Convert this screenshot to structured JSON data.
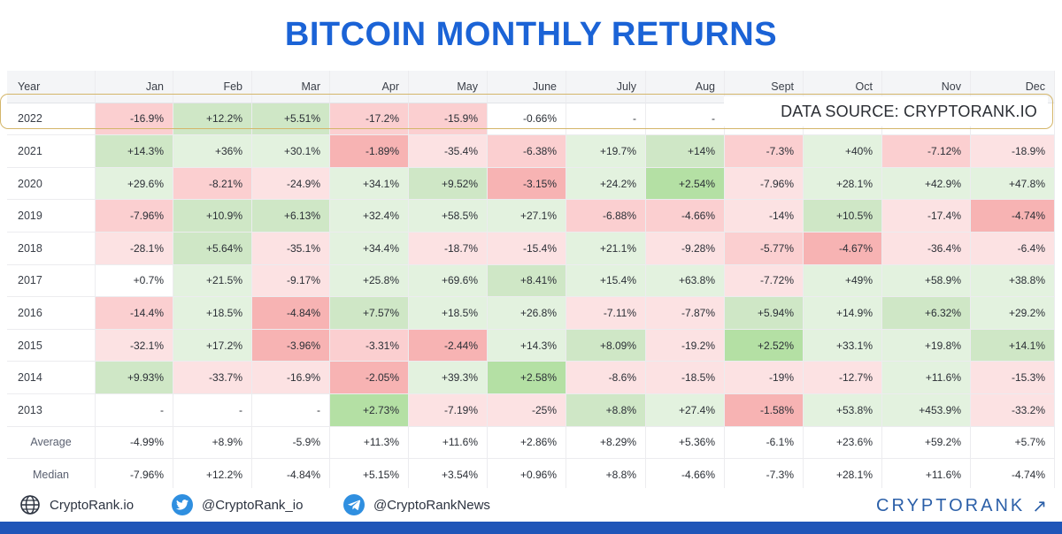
{
  "title": "BITCOIN MONTHLY RETURNS",
  "source_note": "DATA SOURCE: CRYPTORANK.IO",
  "footer": {
    "website": "CryptoRank.io",
    "twitter": "@CryptoRank_io",
    "telegram": "@CryptoRankNews",
    "brand": "CRYPTORANK",
    "brand_arrow": "↗"
  },
  "colors": {
    "title": "#1b63d6",
    "highlight_border": "#d4b66a",
    "brand": "#2b5fa8",
    "bar": "#1f55b8",
    "green_light": "#e3f2df",
    "green_mid": "#cfe7c6",
    "green_strong": "#b4e0a4",
    "red_light": "#fce2e3",
    "red_mid": "#fbcfd0",
    "red_strong": "#f7b3b3",
    "neutral": "#ffffff"
  },
  "chart_data": {
    "type": "table",
    "header_year": "Year",
    "columns": [
      "Jan",
      "Feb",
      "Mar",
      "Apr",
      "May",
      "June",
      "July",
      "Aug",
      "Sept",
      "Oct",
      "Nov",
      "Dec"
    ],
    "rows": [
      {
        "year": "2022",
        "values": [
          "-16.9%",
          "+12.2%",
          "+5.51%",
          "-17.2%",
          "-15.9%",
          "-0.66%",
          "-",
          "-",
          "",
          "",
          "",
          ""
        ],
        "tones": [
          "r2",
          "g2",
          "g2",
          "r2",
          "r2",
          "n",
          "n",
          "n",
          "n",
          "n",
          "n",
          "n"
        ]
      },
      {
        "year": "2021",
        "values": [
          "+14.3%",
          "+36%",
          "+30.1%",
          "-1.89%",
          "-35.4%",
          "-6.38%",
          "+19.7%",
          "+14%",
          "-7.3%",
          "+40%",
          "-7.12%",
          "-18.9%"
        ],
        "tones": [
          "g2",
          "g1",
          "g1",
          "r3",
          "r1",
          "r2",
          "g1",
          "g2",
          "r2",
          "g1",
          "r2",
          "r1"
        ]
      },
      {
        "year": "2020",
        "values": [
          "+29.6%",
          "-8.21%",
          "-24.9%",
          "+34.1%",
          "+9.52%",
          "-3.15%",
          "+24.2%",
          "+2.54%",
          "-7.96%",
          "+28.1%",
          "+42.9%",
          "+47.8%"
        ],
        "tones": [
          "g1",
          "r2",
          "r1",
          "g1",
          "g2",
          "r3",
          "g1",
          "g3",
          "r1",
          "g1",
          "g1",
          "g1"
        ]
      },
      {
        "year": "2019",
        "values": [
          "-7.96%",
          "+10.9%",
          "+6.13%",
          "+32.4%",
          "+58.5%",
          "+27.1%",
          "-6.88%",
          "-4.66%",
          "-14%",
          "+10.5%",
          "-17.4%",
          "-4.74%"
        ],
        "tones": [
          "r2",
          "g2",
          "g2",
          "g1",
          "g1",
          "g1",
          "r2",
          "r2",
          "r1",
          "g2",
          "r1",
          "r3"
        ]
      },
      {
        "year": "2018",
        "values": [
          "-28.1%",
          "+5.64%",
          "-35.1%",
          "+34.4%",
          "-18.7%",
          "-15.4%",
          "+21.1%",
          "-9.28%",
          "-5.77%",
          "-4.67%",
          "-36.4%",
          "-6.4%"
        ],
        "tones": [
          "r1",
          "g2",
          "r1",
          "g1",
          "r1",
          "r1",
          "g1",
          "r1",
          "r2",
          "r3",
          "r1",
          "r1"
        ]
      },
      {
        "year": "2017",
        "values": [
          "+0.7%",
          "+21.5%",
          "-9.17%",
          "+25.8%",
          "+69.6%",
          "+8.41%",
          "+15.4%",
          "+63.8%",
          "-7.72%",
          "+49%",
          "+58.9%",
          "+38.8%"
        ],
        "tones": [
          "n",
          "g1",
          "r1",
          "g1",
          "g1",
          "g2",
          "g1",
          "g1",
          "r1",
          "g1",
          "g1",
          "g1"
        ]
      },
      {
        "year": "2016",
        "values": [
          "-14.4%",
          "+18.5%",
          "-4.84%",
          "+7.57%",
          "+18.5%",
          "+26.8%",
          "-7.11%",
          "-7.87%",
          "+5.94%",
          "+14.9%",
          "+6.32%",
          "+29.2%"
        ],
        "tones": [
          "r2",
          "g1",
          "r3",
          "g2",
          "g1",
          "g1",
          "r1",
          "r1",
          "g2",
          "g1",
          "g2",
          "g1"
        ]
      },
      {
        "year": "2015",
        "values": [
          "-32.1%",
          "+17.2%",
          "-3.96%",
          "-3.31%",
          "-2.44%",
          "+14.3%",
          "+8.09%",
          "-19.2%",
          "+2.52%",
          "+33.1%",
          "+19.8%",
          "+14.1%"
        ],
        "tones": [
          "r1",
          "g1",
          "r3",
          "r2",
          "r3",
          "g1",
          "g2",
          "r1",
          "g3",
          "g1",
          "g1",
          "g2"
        ]
      },
      {
        "year": "2014",
        "values": [
          "+9.93%",
          "-33.7%",
          "-16.9%",
          "-2.05%",
          "+39.3%",
          "+2.58%",
          "-8.6%",
          "-18.5%",
          "-19%",
          "-12.7%",
          "+11.6%",
          "-15.3%"
        ],
        "tones": [
          "g2",
          "r1",
          "r1",
          "r3",
          "g1",
          "g3",
          "r1",
          "r1",
          "r1",
          "r1",
          "g1",
          "r1"
        ]
      },
      {
        "year": "2013",
        "values": [
          "-",
          "-",
          "-",
          "+2.73%",
          "-7.19%",
          "-25%",
          "+8.8%",
          "+27.4%",
          "-1.58%",
          "+53.8%",
          "+453.9%",
          "-33.2%"
        ],
        "tones": [
          "n",
          "n",
          "n",
          "g3",
          "r1",
          "r1",
          "g2",
          "g1",
          "r3",
          "g1",
          "g1",
          "r1"
        ]
      }
    ],
    "summary_rows": [
      {
        "label": "Average",
        "values": [
          "-4.99%",
          "+8.9%",
          "-5.9%",
          "+11.3%",
          "+11.6%",
          "+2.86%",
          "+8.29%",
          "+5.36%",
          "-6.1%",
          "+23.6%",
          "+59.2%",
          "+5.7%"
        ]
      },
      {
        "label": "Median",
        "values": [
          "-7.96%",
          "+12.2%",
          "-4.84%",
          "+5.15%",
          "+3.54%",
          "+0.96%",
          "+8.8%",
          "-4.66%",
          "-7.3%",
          "+28.1%",
          "+11.6%",
          "-4.74%"
        ]
      }
    ]
  }
}
